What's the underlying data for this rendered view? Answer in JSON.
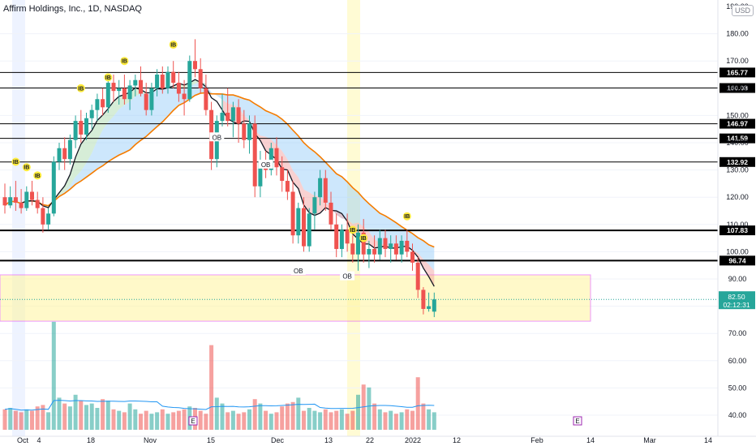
{
  "header": {
    "title": "Affirm Holdings, Inc., 1D, NASDAQ",
    "currency": "USD"
  },
  "chart_data": {
    "type": "candlestick",
    "title": "Affirm Holdings, Inc., 1D, NASDAQ",
    "y_axis": {
      "ticks": [
        "190.00",
        "180.00",
        "170.00",
        "160.00",
        "150.00",
        "140.00",
        "130.00",
        "120.00",
        "110.00",
        "100.00",
        "90.00",
        "80.00",
        "70.00",
        "60.00",
        "50.00",
        "40.00"
      ],
      "ylim": [
        40,
        190
      ]
    },
    "x_axis": {
      "ticks": [
        "Oct",
        "4",
        "18",
        "Nov",
        "15",
        "Dec",
        "13",
        "22",
        "2022",
        "12",
        "Feb",
        "14",
        "Mar",
        "14"
      ]
    },
    "last_price": {
      "value": "82.50",
      "countdown": "02:12:31"
    },
    "levels": [
      "165.77",
      "160.08",
      "146.97",
      "141.59",
      "132.92",
      "107.83",
      "96.74"
    ],
    "markers": {
      "ib": "IB",
      "ob": "OB",
      "earnings": "E"
    },
    "ohlc": [
      [
        120,
        125,
        114,
        117
      ],
      [
        117,
        124,
        116,
        120
      ],
      [
        120,
        126,
        115,
        118
      ],
      [
        118,
        123,
        114,
        116
      ],
      [
        116,
        124,
        115,
        122
      ],
      [
        122,
        126,
        117,
        119
      ],
      [
        119,
        122,
        114,
        116
      ],
      [
        116,
        120,
        107,
        110
      ],
      [
        110,
        116,
        108,
        114
      ],
      [
        114,
        135,
        113,
        133
      ],
      [
        133,
        140,
        130,
        138
      ],
      [
        138,
        142,
        130,
        134
      ],
      [
        134,
        143,
        132,
        141
      ],
      [
        141,
        150,
        138,
        148
      ],
      [
        148,
        152,
        140,
        143
      ],
      [
        143,
        151,
        141,
        149
      ],
      [
        149,
        154,
        145,
        152
      ],
      [
        152,
        158,
        148,
        156
      ],
      [
        156,
        160,
        150,
        153
      ],
      [
        153,
        163,
        151,
        162
      ],
      [
        162,
        165,
        155,
        159
      ],
      [
        159,
        163,
        154,
        160
      ],
      [
        160,
        165,
        154,
        156
      ],
      [
        156,
        163,
        152,
        161
      ],
      [
        161,
        165,
        157,
        163
      ],
      [
        163,
        168,
        157,
        158
      ],
      [
        158,
        162,
        150,
        152
      ],
      [
        152,
        162,
        150,
        160
      ],
      [
        160,
        167,
        157,
        165
      ],
      [
        165,
        168,
        158,
        160
      ],
      [
        160,
        168,
        158,
        166
      ],
      [
        166,
        170,
        160,
        162
      ],
      [
        162,
        166,
        155,
        158
      ],
      [
        158,
        163,
        150,
        156
      ],
      [
        156,
        172,
        155,
        170
      ],
      [
        170,
        178,
        164,
        167
      ],
      [
        167,
        171,
        158,
        160
      ],
      [
        160,
        165,
        150,
        152
      ],
      [
        152,
        155,
        130,
        134
      ],
      [
        134,
        150,
        131,
        148
      ],
      [
        148,
        158,
        146,
        151
      ],
      [
        151,
        160,
        146,
        148
      ],
      [
        148,
        155,
        142,
        153
      ],
      [
        153,
        156,
        140,
        147
      ],
      [
        147,
        152,
        138,
        141
      ],
      [
        141,
        150,
        136,
        147
      ],
      [
        147,
        150,
        120,
        124
      ],
      [
        124,
        137,
        120,
        133
      ],
      [
        133,
        137,
        127,
        130
      ],
      [
        130,
        140,
        128,
        138
      ],
      [
        138,
        142,
        128,
        131
      ],
      [
        131,
        135,
        122,
        126
      ],
      [
        126,
        130,
        119,
        122
      ],
      [
        122,
        126,
        103,
        106
      ],
      [
        106,
        118,
        103,
        116
      ],
      [
        116,
        120,
        100,
        102
      ],
      [
        102,
        116,
        100,
        114
      ],
      [
        114,
        122,
        108,
        120
      ],
      [
        120,
        130,
        117,
        127
      ],
      [
        127,
        130,
        115,
        118
      ],
      [
        118,
        122,
        108,
        110
      ],
      [
        110,
        114,
        98,
        101
      ],
      [
        101,
        110,
        98,
        108
      ],
      [
        108,
        114,
        100,
        103
      ],
      [
        103,
        106,
        96,
        99
      ],
      [
        99,
        110,
        93,
        107
      ],
      [
        107,
        112,
        96,
        99
      ],
      [
        99,
        104,
        94,
        101
      ],
      [
        101,
        106,
        96,
        99
      ],
      [
        99,
        108,
        97,
        105
      ],
      [
        105,
        108,
        98,
        101
      ],
      [
        101,
        106,
        96,
        103
      ],
      [
        103,
        106,
        97,
        99
      ],
      [
        99,
        106,
        96,
        104
      ],
      [
        104,
        108,
        98,
        100
      ],
      [
        100,
        103,
        93,
        96
      ],
      [
        96,
        98,
        83,
        86
      ],
      [
        86,
        87,
        77,
        79
      ],
      [
        79,
        85,
        78,
        80
      ],
      [
        78,
        85,
        76,
        82.5
      ]
    ],
    "volume": [
      14,
      15,
      13,
      12,
      14,
      13,
      16,
      17,
      12,
      74,
      22,
      18,
      16,
      24,
      20,
      17,
      18,
      15,
      21,
      20,
      14,
      13,
      12,
      18,
      14,
      11,
      13,
      11,
      12,
      14,
      11,
      12,
      13,
      14,
      16,
      15,
      13,
      11,
      58,
      22,
      18,
      12,
      13,
      11,
      12,
      14,
      21,
      18,
      13,
      11,
      12,
      16,
      18,
      19,
      22,
      13,
      15,
      13,
      12,
      14,
      12,
      13,
      14,
      11,
      13,
      24,
      31,
      29,
      18,
      14,
      12,
      13,
      11,
      12,
      14,
      13,
      36,
      18,
      14,
      12
    ]
  }
}
